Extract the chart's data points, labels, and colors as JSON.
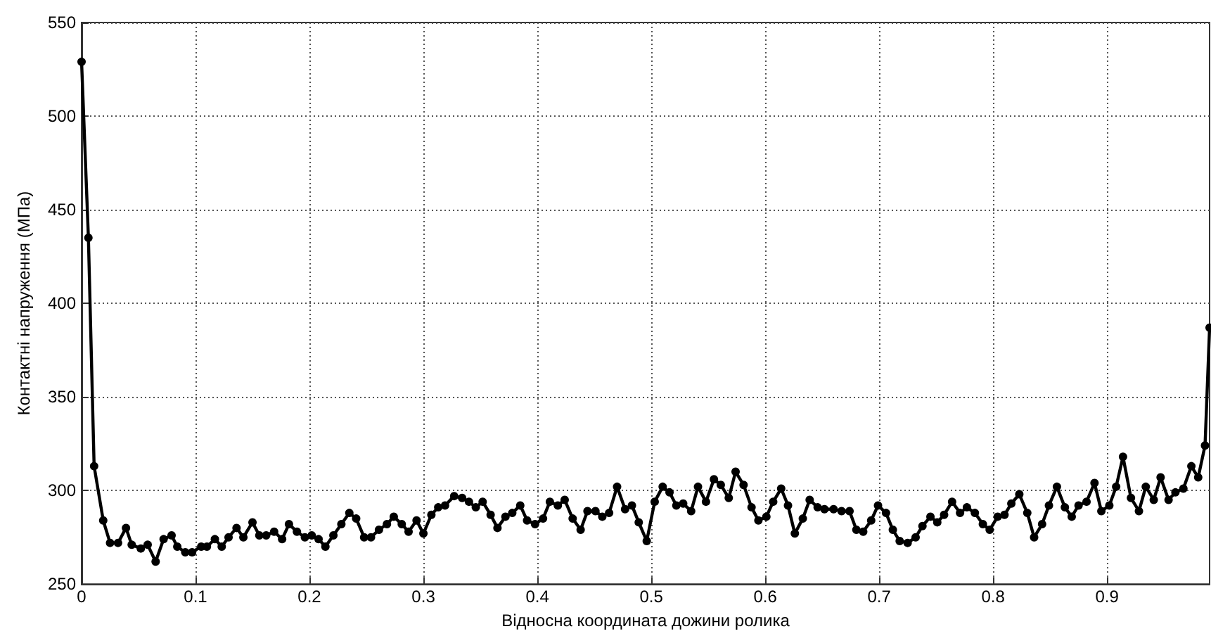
{
  "chart_data": {
    "type": "line",
    "xlabel": "Відносна координата дожини ролика",
    "ylabel": "Контактні напруження (МПа)",
    "x": [
      0,
      0.006,
      0.011,
      0.019,
      0.025,
      0.032,
      0.039,
      0.044,
      0.052,
      0.058,
      0.065,
      0.072,
      0.079,
      0.084,
      0.091,
      0.097,
      0.105,
      0.11,
      0.117,
      0.123,
      0.129,
      0.136,
      0.142,
      0.15,
      0.156,
      0.162,
      0.169,
      0.176,
      0.182,
      0.189,
      0.196,
      0.202,
      0.208,
      0.214,
      0.221,
      0.228,
      0.235,
      0.241,
      0.248,
      0.254,
      0.261,
      0.268,
      0.274,
      0.281,
      0.287,
      0.294,
      0.3,
      0.307,
      0.313,
      0.319,
      0.327,
      0.334,
      0.34,
      0.346,
      0.352,
      0.359,
      0.365,
      0.372,
      0.378,
      0.385,
      0.391,
      0.398,
      0.405,
      0.411,
      0.418,
      0.424,
      0.431,
      0.438,
      0.444,
      0.451,
      0.457,
      0.463,
      0.47,
      0.477,
      0.483,
      0.489,
      0.496,
      0.503,
      0.51,
      0.516,
      0.522,
      0.528,
      0.535,
      0.541,
      0.548,
      0.555,
      0.561,
      0.568,
      0.574,
      0.581,
      0.588,
      0.594,
      0.601,
      0.607,
      0.614,
      0.62,
      0.626,
      0.633,
      0.639,
      0.646,
      0.652,
      0.66,
      0.667,
      0.674,
      0.68,
      0.686,
      0.693,
      0.699,
      0.706,
      0.712,
      0.718,
      0.725,
      0.732,
      0.738,
      0.745,
      0.751,
      0.757,
      0.764,
      0.771,
      0.777,
      0.784,
      0.791,
      0.797,
      0.804,
      0.81,
      0.816,
      0.823,
      0.83,
      0.836,
      0.843,
      0.849,
      0.856,
      0.863,
      0.869,
      0.875,
      0.882,
      0.889,
      0.895,
      0.902,
      0.908,
      0.914,
      0.921,
      0.928,
      0.934,
      0.941,
      0.947,
      0.954,
      0.96,
      0.967,
      0.974,
      0.98,
      0.986,
      0.99
    ],
    "series": [
      {
        "color": "#000000",
        "values": [
          529,
          435,
          313,
          284,
          272,
          272,
          280,
          271,
          269,
          271,
          262,
          274,
          276,
          270,
          267,
          267,
          270,
          270,
          274,
          270,
          275,
          280,
          275,
          283,
          276,
          276,
          278,
          274,
          282,
          278,
          275,
          276,
          274,
          270,
          276,
          282,
          288,
          285,
          275,
          275,
          279,
          282,
          286,
          282,
          278,
          284,
          277,
          287,
          291,
          292,
          297,
          296,
          294,
          291,
          294,
          287,
          280,
          286,
          288,
          292,
          284,
          282,
          285,
          294,
          292,
          295,
          285,
          279,
          289,
          289,
          286,
          288,
          302,
          290,
          292,
          283,
          273,
          294,
          302,
          299,
          292,
          293,
          289,
          302,
          294,
          306,
          303,
          296,
          310,
          303,
          291,
          284,
          286,
          294,
          301,
          292,
          277,
          285,
          295,
          291,
          290,
          290,
          289,
          289,
          279,
          278,
          284,
          292,
          288,
          279,
          273,
          272,
          275,
          281,
          286,
          283,
          287,
          294,
          288,
          291,
          288,
          282,
          279,
          286,
          287,
          293,
          298,
          288,
          275,
          282,
          292,
          302,
          291,
          286,
          292,
          294,
          304,
          289,
          292,
          302,
          318,
          296,
          289,
          302,
          295,
          307,
          295,
          299,
          301,
          313,
          307,
          324,
          387
        ]
      }
    ],
    "xlim": [
      0,
      0.99
    ],
    "xticks": [
      0,
      0.1,
      0.2,
      0.3,
      0.4,
      0.5,
      0.6,
      0.7,
      0.8,
      0.9
    ],
    "ylim": [
      250,
      550
    ],
    "yticks": [
      250,
      300,
      350,
      400,
      450,
      500,
      550
    ],
    "grid": true,
    "marker": "circle",
    "line_style": "solid"
  }
}
